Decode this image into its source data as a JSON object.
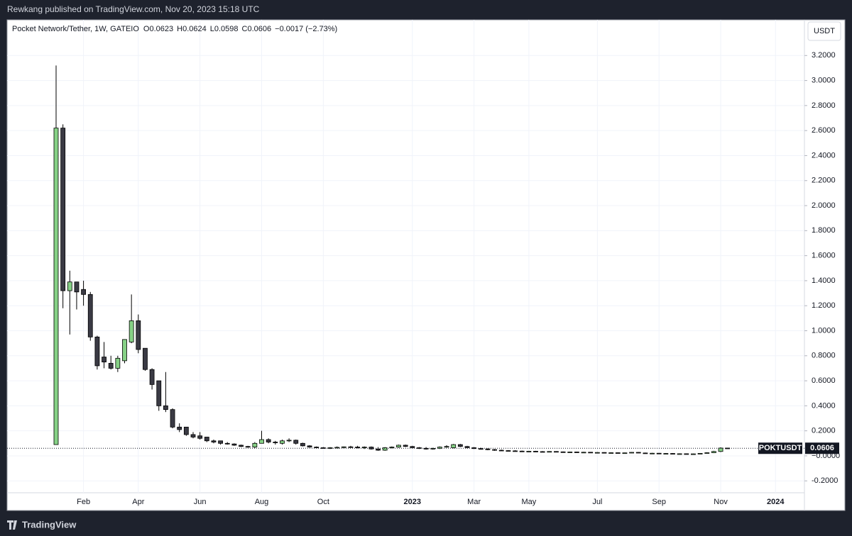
{
  "header": "Rewkang published on TradingView.com, Nov 20, 2023 15:18 UTC",
  "footer": "TradingView",
  "chart_data": {
    "type": "candlestick",
    "symbol": "Pocket Network/Tether, 1W, GATEIO",
    "fields": [
      "O",
      "H",
      "L",
      "C"
    ],
    "change": "−0.0017 (−2.73%)",
    "currency": "USDT",
    "ticker": "POKTUSDT",
    "up_color": "#86d186",
    "down_color": "#3a3a44",
    "wick_color": "#000000",
    "grid": true,
    "ylim": [
      -0.295,
      3.485
    ],
    "yticks": [
      {
        "value": -0.2,
        "label": "-0.2000"
      },
      {
        "value": 0,
        "label": "−0.0000"
      },
      {
        "value": 0.2,
        "label": "0.2000"
      },
      {
        "value": 0.4,
        "label": "0.4000"
      },
      {
        "value": 0.6,
        "label": "0.6000"
      },
      {
        "value": 0.8,
        "label": "0.8000"
      },
      {
        "value": 1.0,
        "label": "1.0000"
      },
      {
        "value": 1.2,
        "label": "1.2000"
      },
      {
        "value": 1.4,
        "label": "1.4000"
      },
      {
        "value": 1.6,
        "label": "1.6000"
      },
      {
        "value": 1.8,
        "label": "1.8000"
      },
      {
        "value": 2.0,
        "label": "2.0000"
      },
      {
        "value": 2.2,
        "label": "2.2000"
      },
      {
        "value": 2.4,
        "label": "2.4000"
      },
      {
        "value": 2.6,
        "label": "2.6000"
      },
      {
        "value": 2.8,
        "label": "2.8000"
      },
      {
        "value": 3.0,
        "label": "3.0000"
      },
      {
        "value": 3.2,
        "label": "3.2000"
      }
    ],
    "categories": [
      null,
      null,
      null,
      null,
      "Feb",
      null,
      null,
      null,
      null,
      null,
      null,
      null,
      "Apr",
      null,
      null,
      null,
      null,
      null,
      null,
      null,
      null,
      "Jun",
      null,
      null,
      null,
      null,
      null,
      null,
      null,
      null,
      "Aug",
      null,
      null,
      null,
      null,
      null,
      null,
      null,
      null,
      "Oct",
      null,
      null,
      null,
      null,
      null,
      null,
      null,
      null,
      null,
      null,
      null,
      null,
      "2023",
      null,
      null,
      null,
      null,
      null,
      null,
      null,
      null,
      "Mar",
      null,
      null,
      null,
      null,
      null,
      null,
      null,
      "May",
      null,
      null,
      null,
      null,
      null,
      null,
      null,
      null,
      null,
      "Jul",
      null,
      null,
      null,
      null,
      null,
      null,
      null,
      null,
      "Sep",
      null,
      null,
      null,
      null,
      null,
      null,
      null,
      null,
      "Nov",
      null,
      null,
      null,
      null,
      null,
      null,
      null,
      "2024"
    ],
    "ohlc": [
      [
        0.09,
        3.12,
        0.09,
        2.62
      ],
      [
        2.62,
        2.65,
        1.18,
        1.32
      ],
      [
        1.32,
        1.48,
        0.97,
        1.39
      ],
      [
        1.39,
        1.39,
        1.17,
        1.31
      ],
      [
        1.33,
        1.4,
        1.2,
        1.29
      ],
      [
        1.29,
        1.31,
        0.92,
        0.95
      ],
      [
        0.95,
        0.96,
        0.69,
        0.72
      ],
      [
        0.79,
        0.91,
        0.7,
        0.75
      ],
      [
        0.74,
        0.8,
        0.69,
        0.7
      ],
      [
        0.7,
        0.8,
        0.67,
        0.78
      ],
      [
        0.76,
        0.93,
        0.74,
        0.93
      ],
      [
        0.91,
        1.29,
        0.9,
        1.08
      ],
      [
        1.08,
        1.13,
        0.82,
        0.85
      ],
      [
        0.86,
        0.86,
        0.68,
        0.69
      ],
      [
        0.69,
        0.7,
        0.53,
        0.57
      ],
      [
        0.6,
        0.6,
        0.36,
        0.4
      ],
      [
        0.4,
        0.67,
        0.35,
        0.37
      ],
      [
        0.37,
        0.38,
        0.22,
        0.23
      ],
      [
        0.23,
        0.26,
        0.19,
        0.21
      ],
      [
        0.23,
        0.23,
        0.16,
        0.17
      ],
      [
        0.17,
        0.19,
        0.14,
        0.15
      ],
      [
        0.16,
        0.19,
        0.13,
        0.14
      ],
      [
        0.15,
        0.15,
        0.11,
        0.12
      ],
      [
        0.12,
        0.13,
        0.1,
        0.11
      ],
      [
        0.12,
        0.12,
        0.09,
        0.1
      ],
      [
        0.1,
        0.11,
        0.09,
        0.095
      ],
      [
        0.095,
        0.1,
        0.08,
        0.085
      ],
      [
        0.085,
        0.09,
        0.07,
        0.075
      ],
      [
        0.075,
        0.08,
        0.065,
        0.07
      ],
      [
        0.07,
        0.11,
        0.06,
        0.1
      ],
      [
        0.1,
        0.2,
        0.1,
        0.13
      ],
      [
        0.13,
        0.14,
        0.1,
        0.11
      ],
      [
        0.11,
        0.12,
        0.09,
        0.105
      ],
      [
        0.1,
        0.13,
        0.09,
        0.12
      ],
      [
        0.12,
        0.14,
        0.11,
        0.125
      ],
      [
        0.125,
        0.13,
        0.09,
        0.1
      ],
      [
        0.1,
        0.105,
        0.075,
        0.08
      ],
      [
        0.08,
        0.085,
        0.065,
        0.07
      ],
      [
        0.07,
        0.075,
        0.06,
        0.065
      ],
      [
        0.065,
        0.07,
        0.06,
        0.062
      ],
      [
        0.062,
        0.07,
        0.055,
        0.065
      ],
      [
        0.065,
        0.075,
        0.06,
        0.068
      ],
      [
        0.068,
        0.075,
        0.06,
        0.072
      ],
      [
        0.072,
        0.08,
        0.065,
        0.07
      ],
      [
        0.07,
        0.08,
        0.06,
        0.068
      ],
      [
        0.068,
        0.075,
        0.055,
        0.07
      ],
      [
        0.07,
        0.075,
        0.05,
        0.055
      ],
      [
        0.055,
        0.07,
        0.04,
        0.045
      ],
      [
        0.045,
        0.07,
        0.04,
        0.065
      ],
      [
        0.065,
        0.075,
        0.06,
        0.07
      ],
      [
        0.07,
        0.09,
        0.065,
        0.085
      ],
      [
        0.085,
        0.09,
        0.07,
        0.075
      ],
      [
        0.075,
        0.08,
        0.06,
        0.065
      ],
      [
        0.065,
        0.07,
        0.055,
        0.06
      ],
      [
        0.06,
        0.07,
        0.05,
        0.055
      ],
      [
        0.055,
        0.065,
        0.05,
        0.06
      ],
      [
        0.06,
        0.075,
        0.055,
        0.07
      ],
      [
        0.07,
        0.085,
        0.065,
        0.075
      ],
      [
        0.065,
        0.095,
        0.06,
        0.09
      ],
      [
        0.09,
        0.095,
        0.07,
        0.075
      ],
      [
        0.075,
        0.08,
        0.06,
        0.065
      ],
      [
        0.065,
        0.07,
        0.055,
        0.058
      ],
      [
        0.058,
        0.065,
        0.05,
        0.055
      ],
      [
        0.055,
        0.06,
        0.045,
        0.05
      ],
      [
        0.05,
        0.055,
        0.04,
        0.045
      ],
      [
        0.045,
        0.05,
        0.04,
        0.042
      ],
      [
        0.042,
        0.046,
        0.037,
        0.04
      ],
      [
        0.04,
        0.045,
        0.036,
        0.038
      ],
      [
        0.038,
        0.042,
        0.034,
        0.036
      ],
      [
        0.036,
        0.04,
        0.033,
        0.037
      ],
      [
        0.037,
        0.04,
        0.032,
        0.034
      ],
      [
        0.034,
        0.038,
        0.03,
        0.033
      ],
      [
        0.033,
        0.037,
        0.03,
        0.035
      ],
      [
        0.035,
        0.037,
        0.03,
        0.032
      ],
      [
        0.032,
        0.035,
        0.028,
        0.03
      ],
      [
        0.03,
        0.034,
        0.027,
        0.031
      ],
      [
        0.031,
        0.033,
        0.026,
        0.028
      ],
      [
        0.028,
        0.032,
        0.025,
        0.029
      ],
      [
        0.029,
        0.031,
        0.024,
        0.026
      ],
      [
        0.026,
        0.03,
        0.023,
        0.027
      ],
      [
        0.027,
        0.029,
        0.022,
        0.024
      ],
      [
        0.024,
        0.028,
        0.021,
        0.025
      ],
      [
        0.025,
        0.027,
        0.02,
        0.022
      ],
      [
        0.022,
        0.026,
        0.02,
        0.024
      ],
      [
        0.024,
        0.03,
        0.022,
        0.028
      ],
      [
        0.028,
        0.03,
        0.022,
        0.023
      ],
      [
        0.023,
        0.026,
        0.019,
        0.02
      ],
      [
        0.02,
        0.024,
        0.017,
        0.021
      ],
      [
        0.021,
        0.023,
        0.016,
        0.018
      ],
      [
        0.018,
        0.022,
        0.015,
        0.019
      ],
      [
        0.019,
        0.021,
        0.014,
        0.016
      ],
      [
        0.016,
        0.02,
        0.013,
        0.017
      ],
      [
        0.017,
        0.019,
        0.012,
        0.014
      ],
      [
        0.014,
        0.018,
        0.012,
        0.016
      ],
      [
        0.016,
        0.022,
        0.015,
        0.02
      ],
      [
        0.02,
        0.028,
        0.018,
        0.025
      ],
      [
        0.025,
        0.04,
        0.022,
        0.035
      ],
      [
        0.035,
        0.068,
        0.03,
        0.0623
      ],
      [
        0.0623,
        0.0624,
        0.0598,
        0.0606
      ],
      null,
      null,
      null,
      null,
      null,
      null,
      null
    ]
  }
}
